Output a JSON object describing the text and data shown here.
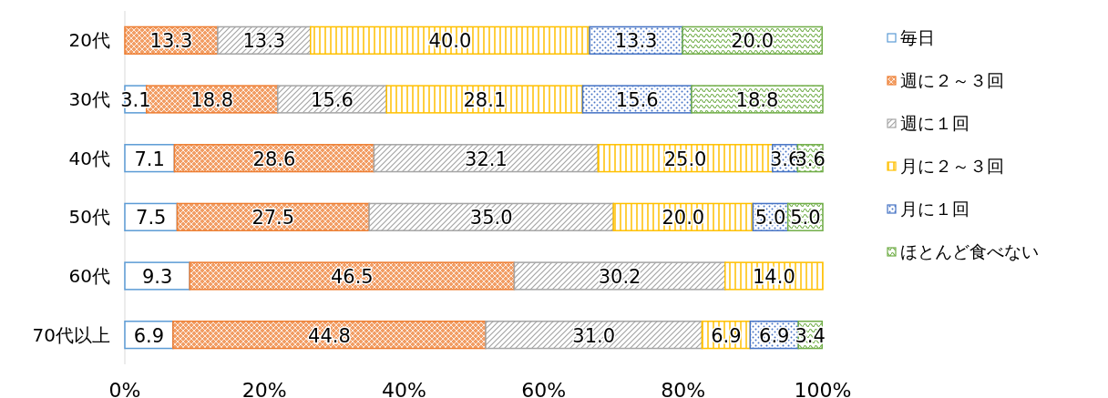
{
  "chart_data": {
    "type": "bar",
    "orientation": "horizontal",
    "stacked": true,
    "legend": "right",
    "categories": [
      "20代",
      "30代",
      "40代",
      "50代",
      "60代",
      "70代以上"
    ],
    "series": [
      {
        "name": "毎日",
        "color": "#5b9bd5",
        "values": [
          null,
          3.1,
          7.1,
          7.5,
          9.3,
          6.9
        ],
        "value_labels": [
          null,
          "3.1",
          "7.1",
          "7.5",
          "9.3",
          "6.9"
        ]
      },
      {
        "name": "週に２～３回",
        "color": "#ed7d31",
        "values": [
          13.3,
          18.8,
          28.6,
          27.5,
          46.5,
          44.8
        ],
        "value_labels": [
          "13.3",
          "18.8",
          "28.6",
          "27.5",
          "46.5",
          "44.8"
        ]
      },
      {
        "name": "週に１回",
        "color": "#a5a5a5",
        "values": [
          13.3,
          15.6,
          32.1,
          35.0,
          30.2,
          31.0
        ],
        "value_labels": [
          "13.3",
          "15.6",
          "32.1",
          "35.0",
          "30.2",
          "31.0"
        ]
      },
      {
        "name": "月に２～３回",
        "color": "#ffc000",
        "values": [
          40.0,
          28.1,
          25.0,
          20.0,
          14.0,
          6.9
        ],
        "value_labels": [
          "40.0",
          "28.1",
          "25.0",
          "20.0",
          "14.0",
          "6.9"
        ]
      },
      {
        "name": "月に１回",
        "color": "#4472c4",
        "values": [
          13.3,
          15.6,
          3.6,
          5.0,
          null,
          6.9
        ],
        "value_labels": [
          "13.3",
          "15.6",
          "3.6",
          "5.0",
          null,
          "6.9"
        ]
      },
      {
        "name": "ほとんど食べない",
        "color": "#70ad47",
        "values": [
          20.0,
          18.8,
          3.6,
          5.0,
          null,
          3.4
        ],
        "value_labels": [
          "20.0",
          "18.8",
          "3.6",
          "5.0",
          null,
          "3.4"
        ]
      }
    ],
    "xlim": [
      0,
      100
    ],
    "xticks": [
      {
        "value": 0,
        "label": "0%"
      },
      {
        "value": 20,
        "label": "20%"
      },
      {
        "value": 40,
        "label": "40%"
      },
      {
        "value": 60,
        "label": "60%"
      },
      {
        "value": 80,
        "label": "80%"
      },
      {
        "value": 100,
        "label": "100%"
      }
    ]
  }
}
